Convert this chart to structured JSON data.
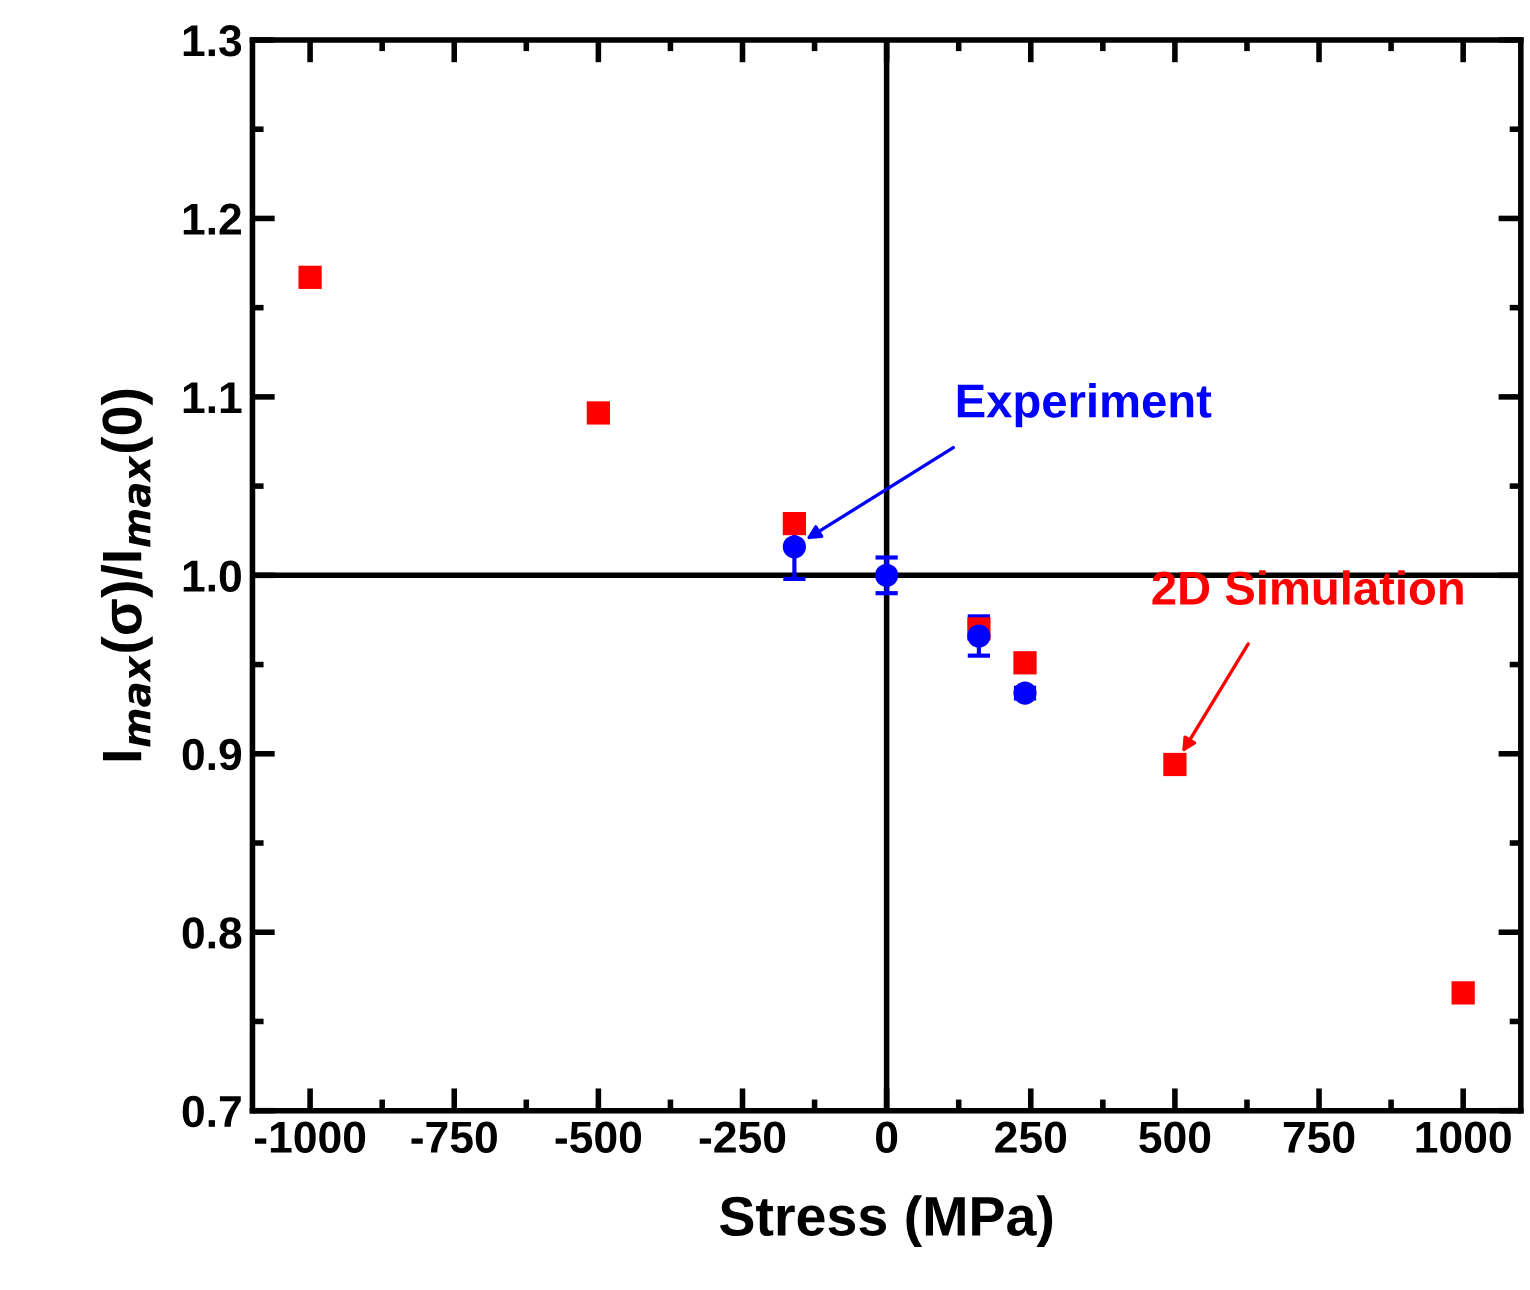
{
  "chart_data": {
    "type": "scatter",
    "xlabel": "Stress (MPa)",
    "ylabel": "I$_{max}$(σ)/I$_{max}$(0)",
    "xlim": [
      -1100,
      1100
    ],
    "xticks": [
      -1000,
      -750,
      -500,
      -250,
      0,
      250,
      500,
      750,
      1000
    ],
    "ylim": [
      0.7,
      1.3
    ],
    "yticks": [
      0.7,
      0.8,
      0.9,
      {
        "value": 1.0,
        "label": "1.0"
      },
      1.1,
      1.2,
      1.3
    ],
    "grid": false,
    "legend": false,
    "series": [
      {
        "color": "#0000ff",
        "marker": "circle",
        "x": [
          -160,
          0,
          160,
          240
        ],
        "values": [
          1.016,
          1.0,
          0.966,
          0.934
        ],
        "errors": [
          0.018,
          0.01,
          0.011,
          0.003
        ]
      },
      {
        "color": "#ff0000",
        "marker": "square",
        "x": [
          -1000,
          -500,
          -160,
          0,
          160,
          240,
          500,
          1000
        ],
        "values": [
          1.167,
          1.091,
          1.029,
          null,
          0.97,
          0.951,
          0.894,
          0.766
        ]
      }
    ],
    "ref_lines": [
      {
        "axis": "x",
        "value": 0,
        "color": "#000000"
      },
      {
        "axis": "y",
        "value": 1.0,
        "color": "#000000"
      }
    ],
    "annotations": [
      {
        "text": "Experiment",
        "x": -160,
        "y": 1.016
      },
      {
        "text": "2D Simulation",
        "x": 500,
        "y": 0.894
      }
    ]
  }
}
